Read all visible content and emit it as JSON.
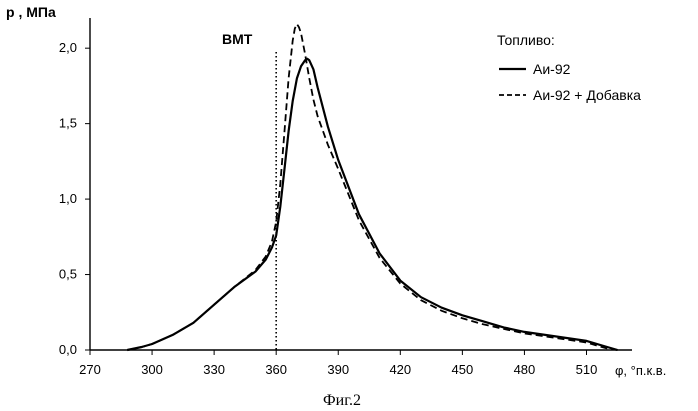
{
  "chart_data": {
    "type": "line",
    "ylabel": "p , МПа",
    "xlabel": "φ, °п.к.в.",
    "caption": "Фиг.2",
    "xlim": [
      270,
      532
    ],
    "ylim": [
      0,
      2.2
    ],
    "xticks": [
      270,
      300,
      330,
      360,
      390,
      420,
      450,
      480,
      510
    ],
    "yticks": [
      0.0,
      0.5,
      1.0,
      1.5,
      2.0
    ],
    "xtick_labels": [
      "270",
      "300",
      "330",
      "360",
      "390",
      "420",
      "450",
      "480",
      "510"
    ],
    "ytick_labels": [
      "0,0",
      "0,5",
      "1,0",
      "1,5",
      "2,0"
    ],
    "grid": false,
    "legend_title": "Топливо:",
    "legend_position": "top-right",
    "annotations": [
      {
        "text": "ВМТ",
        "x": 360,
        "style": "dotted-vertical-line"
      }
    ],
    "series": [
      {
        "name": "Аи-92",
        "style": "solid",
        "x": [
          288,
          295,
          300,
          310,
          320,
          330,
          340,
          350,
          355,
          358,
          360,
          362,
          364,
          366,
          368,
          370,
          372,
          374,
          375,
          376,
          378,
          380,
          385,
          390,
          400,
          410,
          420,
          430,
          440,
          450,
          460,
          470,
          480,
          490,
          500,
          510,
          520,
          525
        ],
        "y": [
          0.0,
          0.02,
          0.04,
          0.1,
          0.18,
          0.3,
          0.42,
          0.52,
          0.6,
          0.68,
          0.76,
          0.95,
          1.2,
          1.45,
          1.65,
          1.8,
          1.88,
          1.92,
          1.93,
          1.92,
          1.86,
          1.74,
          1.48,
          1.26,
          0.9,
          0.64,
          0.46,
          0.35,
          0.28,
          0.23,
          0.19,
          0.15,
          0.12,
          0.1,
          0.08,
          0.06,
          0.02,
          0.0
        ]
      },
      {
        "name": "Аи-92 + Добавка",
        "style": "dashed",
        "x": [
          288,
          295,
          300,
          310,
          320,
          330,
          340,
          350,
          355,
          358,
          360,
          362,
          364,
          366,
          368,
          369,
          370,
          371,
          372,
          374,
          376,
          378,
          380,
          385,
          390,
          400,
          410,
          420,
          430,
          440,
          450,
          460,
          470,
          480,
          490,
          500,
          510,
          520,
          525
        ],
        "y": [
          0.0,
          0.02,
          0.04,
          0.1,
          0.18,
          0.3,
          0.42,
          0.53,
          0.62,
          0.72,
          0.85,
          1.1,
          1.45,
          1.8,
          2.05,
          2.13,
          2.16,
          2.14,
          2.1,
          1.96,
          1.8,
          1.66,
          1.55,
          1.36,
          1.2,
          0.86,
          0.61,
          0.44,
          0.33,
          0.26,
          0.21,
          0.17,
          0.14,
          0.11,
          0.09,
          0.07,
          0.05,
          0.01,
          0.0
        ]
      }
    ]
  }
}
